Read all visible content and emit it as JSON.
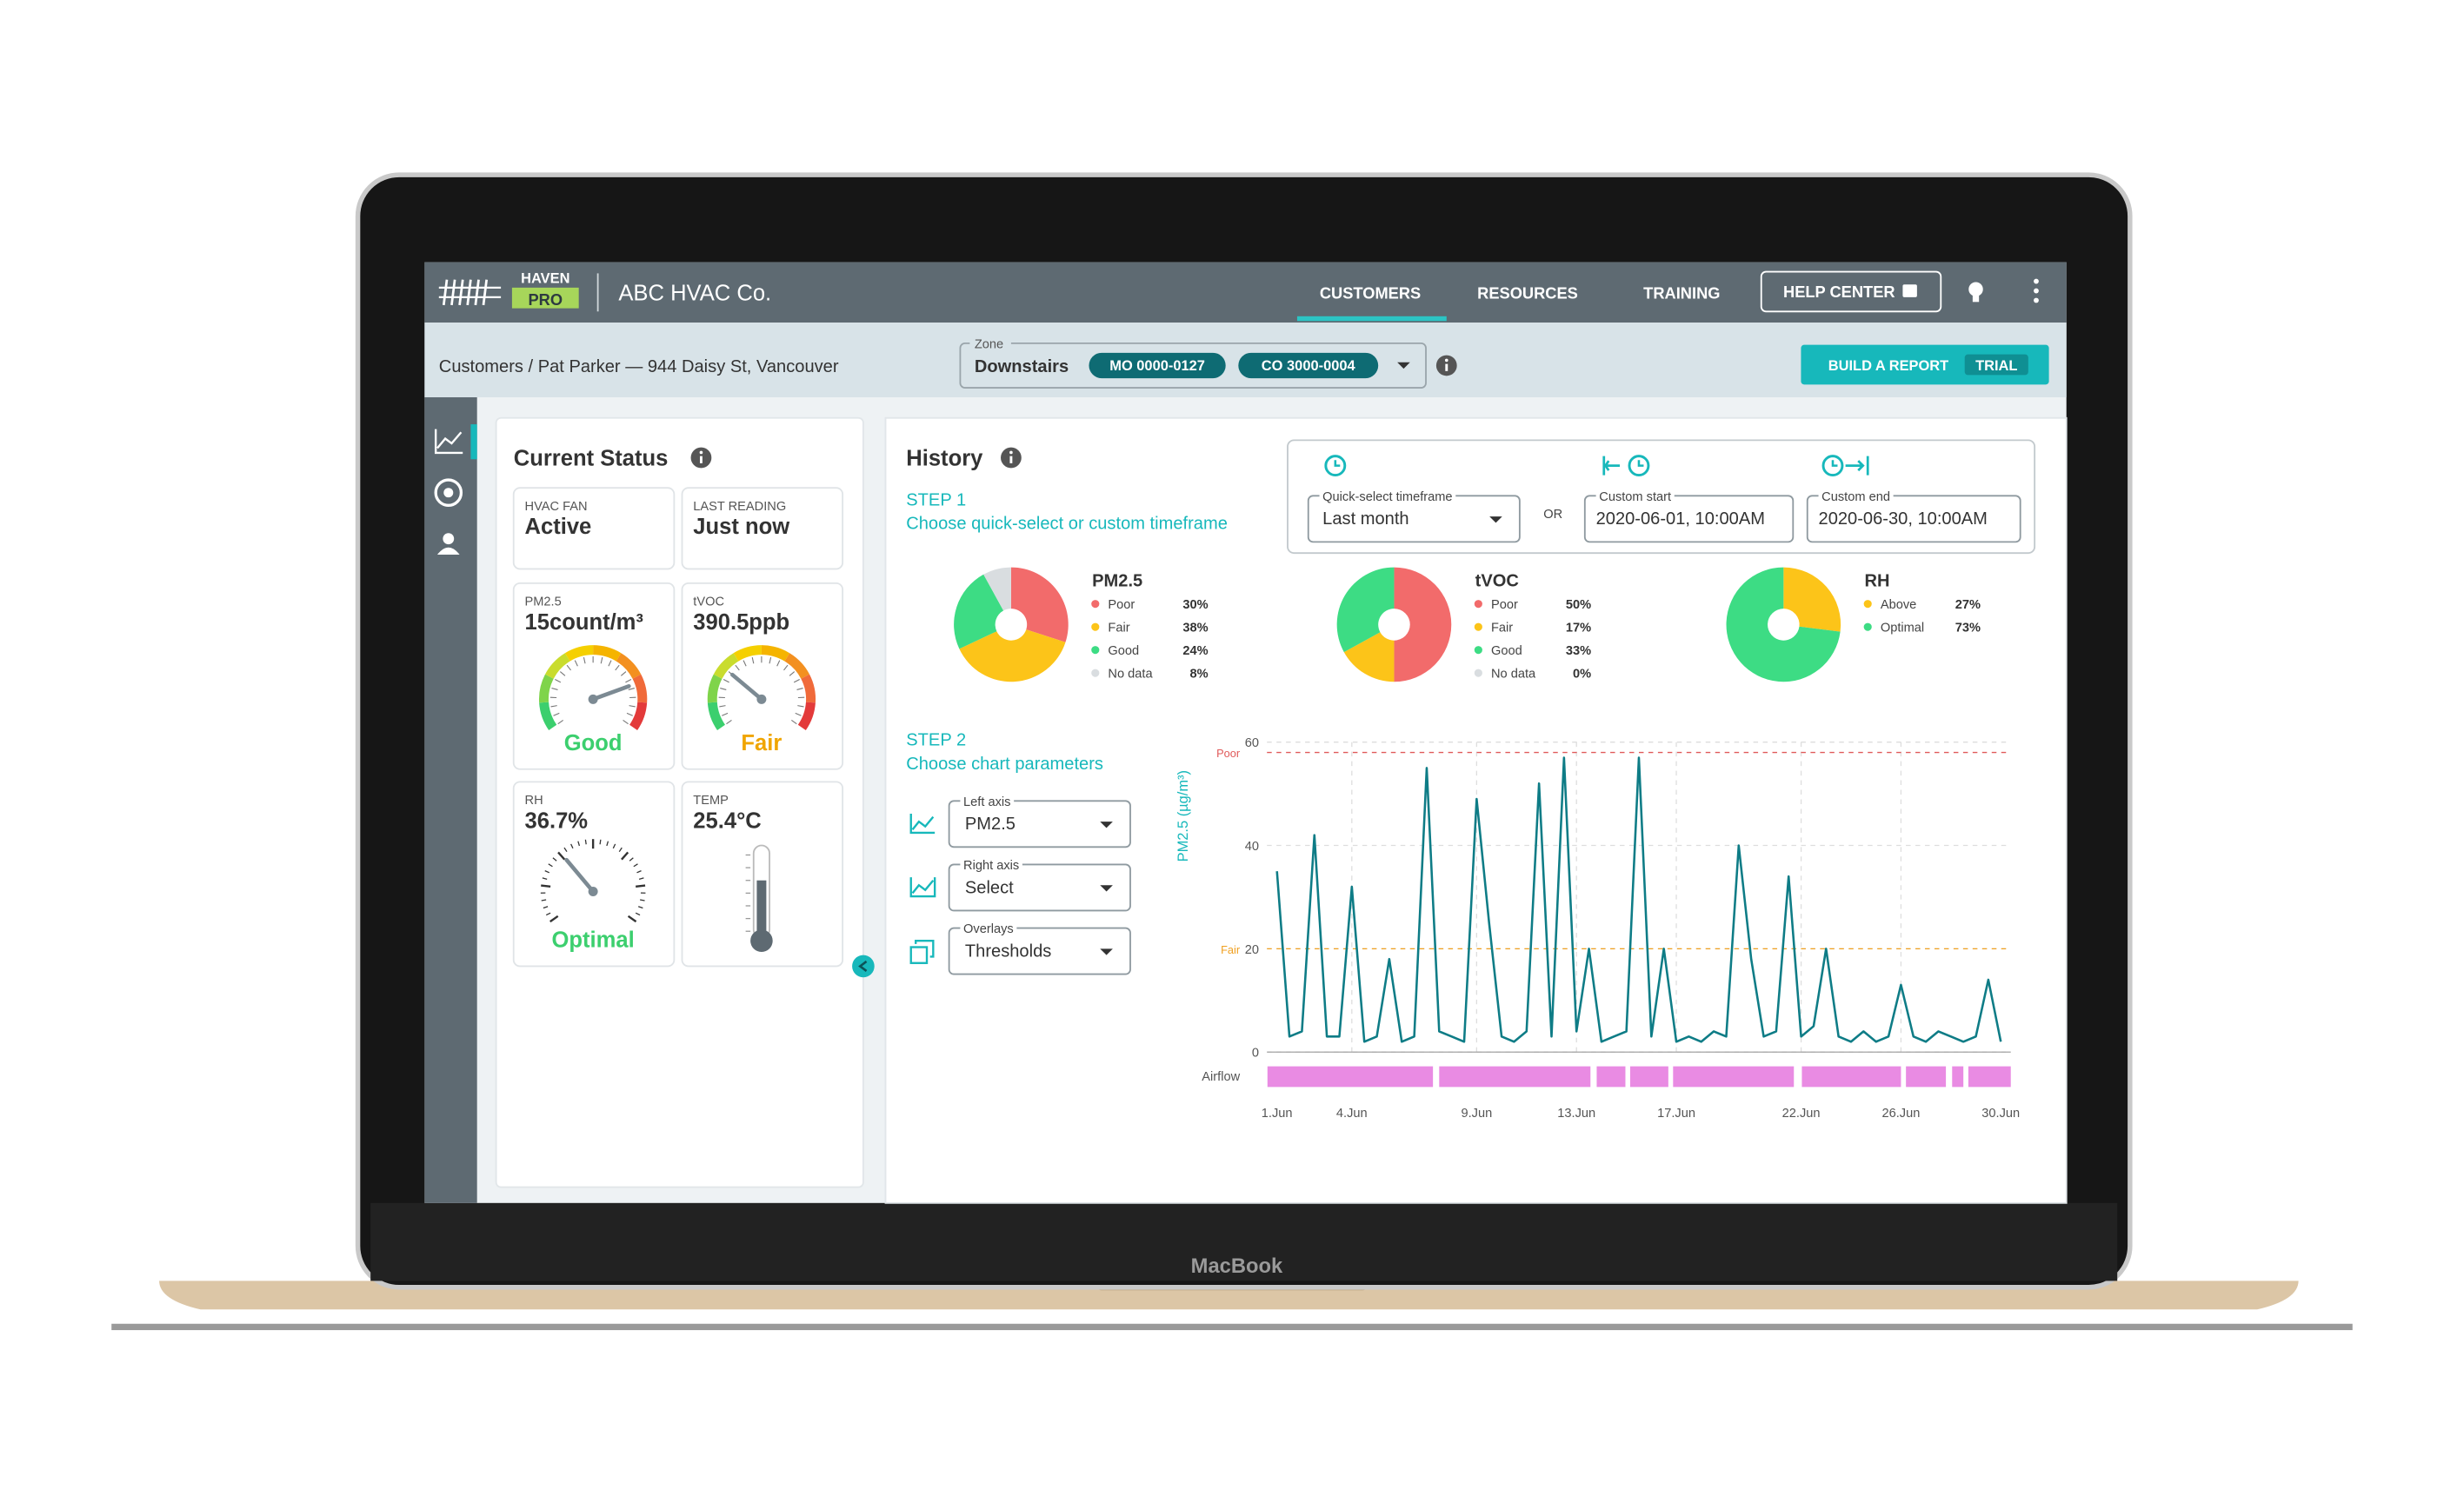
{
  "header": {
    "brand_top": "HAVEN",
    "brand_bottom": "PRO",
    "company": "ABC HVAC Co.",
    "nav": [
      "CUSTOMERS",
      "RESOURCES",
      "TRAINING"
    ],
    "help": "HELP CENTER"
  },
  "subheader": {
    "breadcrumb": "Customers / Pat Parker — 944 Daisy St, Vancouver",
    "zone_label": "Zone",
    "zone": "Downstairs",
    "chips": [
      "MO 0000-0127",
      "CO 3000-0004"
    ],
    "report_button": "BUILD A REPORT",
    "report_badge": "TRIAL"
  },
  "laptop_label": "MacBook",
  "current_status": {
    "title": "Current Status",
    "cards": [
      {
        "label": "HVAC FAN",
        "value": "Active"
      },
      {
        "label": "LAST READING",
        "value": "Just now"
      },
      {
        "label": "PM2.5",
        "value": "15count/m³",
        "status": "Good",
        "color": "#3ccf6e"
      },
      {
        "label": "tVOC",
        "value": "390.5ppb",
        "status": "Fair",
        "color": "#f0a500"
      },
      {
        "label": "RH",
        "value": "36.7%",
        "status": "Optimal",
        "color": "#3ccf6e"
      },
      {
        "label": "TEMP",
        "value": "25.4°C"
      }
    ]
  },
  "history": {
    "title": "History",
    "step1": "STEP 1",
    "step1_text": "Choose quick-select or custom timeframe",
    "timeframe": {
      "quick_label": "Quick-select timeframe",
      "quick_value": "Last month",
      "or": "OR",
      "start_label": "Custom start",
      "start_value": "2020-06-01, 10:00AM",
      "end_label": "Custom end",
      "end_value": "2020-06-30, 10:00AM"
    },
    "step2": "STEP 2",
    "step2_text": "Choose chart parameters",
    "params": [
      {
        "label": "Left axis",
        "value": "PM2.5"
      },
      {
        "label": "Right axis",
        "value": "Select"
      },
      {
        "label": "Overlays",
        "value": "Thresholds"
      }
    ]
  },
  "chart_data": [
    {
      "type": "pie",
      "title": "PM2.5",
      "categories": [
        "Poor",
        "Fair",
        "Good",
        "No data"
      ],
      "values": [
        30,
        38,
        24,
        8
      ],
      "value_labels": [
        "30%",
        "38%",
        "24%",
        "8%"
      ],
      "colors": [
        "#f26b6b",
        "#fcc419",
        "#3ddc84",
        "#d9dde0"
      ]
    },
    {
      "type": "pie",
      "title": "tVOC",
      "categories": [
        "Poor",
        "Fair",
        "Good",
        "No data"
      ],
      "values": [
        50,
        17,
        33,
        0
      ],
      "value_labels": [
        "50%",
        "17%",
        "33%",
        "0%"
      ],
      "colors": [
        "#f26b6b",
        "#fcc419",
        "#3ddc84",
        "#d9dde0"
      ]
    },
    {
      "type": "pie",
      "title": "RH",
      "categories": [
        "Above",
        "Optimal"
      ],
      "values": [
        27,
        73
      ],
      "value_labels": [
        "27%",
        "73%"
      ],
      "colors": [
        "#fcc419",
        "#3ddc84"
      ]
    },
    {
      "type": "line",
      "ylabel": "PM2.5 (µg/m³)",
      "color": "#0e7c86",
      "grid": true,
      "xlim": [
        0.6,
        30.4
      ],
      "ylim": [
        0,
        60
      ],
      "yticks": [
        0,
        20,
        40,
        60
      ],
      "xticks": [
        {
          "value": 1,
          "label": "1.Jun"
        },
        {
          "value": 4,
          "label": "4.Jun"
        },
        {
          "value": 9,
          "label": "9.Jun"
        },
        {
          "value": 13,
          "label": "13.Jun"
        },
        {
          "value": 17,
          "label": "17.Jun"
        },
        {
          "value": 22,
          "label": "22.Jun"
        },
        {
          "value": 26,
          "label": "26.Jun"
        },
        {
          "value": 30,
          "label": "30.Jun"
        }
      ],
      "x": [
        1,
        1.5,
        2,
        2.5,
        3,
        3.5,
        4,
        4.5,
        5,
        5.5,
        6,
        6.5,
        7,
        7.5,
        8,
        8.5,
        9,
        9.5,
        10,
        10.5,
        11,
        11.5,
        12,
        12.5,
        13,
        13.5,
        14,
        14.5,
        15,
        15.5,
        16,
        16.5,
        17,
        17.5,
        18,
        18.5,
        19,
        19.5,
        20,
        20.5,
        21,
        21.5,
        22,
        22.5,
        23,
        23.5,
        24,
        24.5,
        25,
        25.5,
        26,
        26.5,
        27,
        27.5,
        28,
        28.5,
        29,
        29.5,
        30
      ],
      "values": [
        35,
        3,
        4,
        42,
        3,
        3,
        32,
        2,
        3,
        18,
        2,
        3,
        55,
        4,
        3,
        2,
        49,
        25,
        3,
        2,
        4,
        52,
        3,
        57,
        4,
        20,
        2,
        3,
        4,
        57,
        3,
        20,
        2,
        3,
        2,
        4,
        3,
        40,
        18,
        3,
        4,
        34,
        3,
        5,
        20,
        3,
        2,
        4,
        2,
        3,
        13,
        3,
        2,
        4,
        3,
        2,
        3,
        14,
        2
      ],
      "thresholds": [
        {
          "label": "Poor",
          "value": 58,
          "color": "#e05a5a"
        },
        {
          "label": "Fair",
          "value": 20,
          "color": "#f0a020"
        }
      ],
      "airflow": {
        "label": "Airflow",
        "color": "#e98be3",
        "segments": [
          [
            0.62,
            7.25
          ],
          [
            7.5,
            13.56
          ],
          [
            13.81,
            14.96
          ],
          [
            15.15,
            16.68
          ],
          [
            16.87,
            21.71
          ],
          [
            22.03,
            26.0
          ],
          [
            26.2,
            27.8
          ],
          [
            28.05,
            28.5
          ],
          [
            28.7,
            30.4
          ]
        ]
      }
    }
  ]
}
